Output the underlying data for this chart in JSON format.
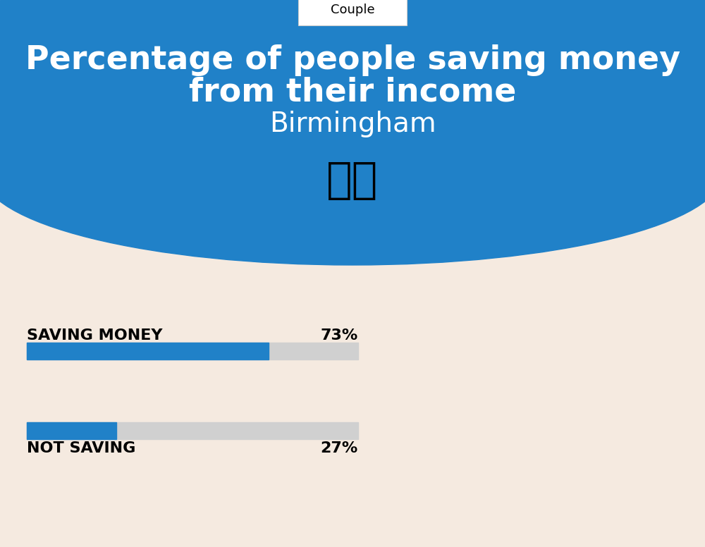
{
  "title_line1": "Percentage of people saving money",
  "title_line2": "from their income",
  "city": "Birmingham",
  "tab_label": "Couple",
  "bg_top_color": "#2081C8",
  "bg_bottom_color": "#F5EAE0",
  "bar_color": "#2081C8",
  "bar_bg_color": "#D0D0D0",
  "label1": "SAVING MONEY",
  "value1": 73,
  "label1_pct": "73%",
  "label2": "NOT SAVING",
  "value2": 27,
  "label2_pct": "27%",
  "text_color_title": "#FFFFFF",
  "text_color_bars": "#000000",
  "flag_emoji": "🇬🇧",
  "tab_label_color": "#000000"
}
